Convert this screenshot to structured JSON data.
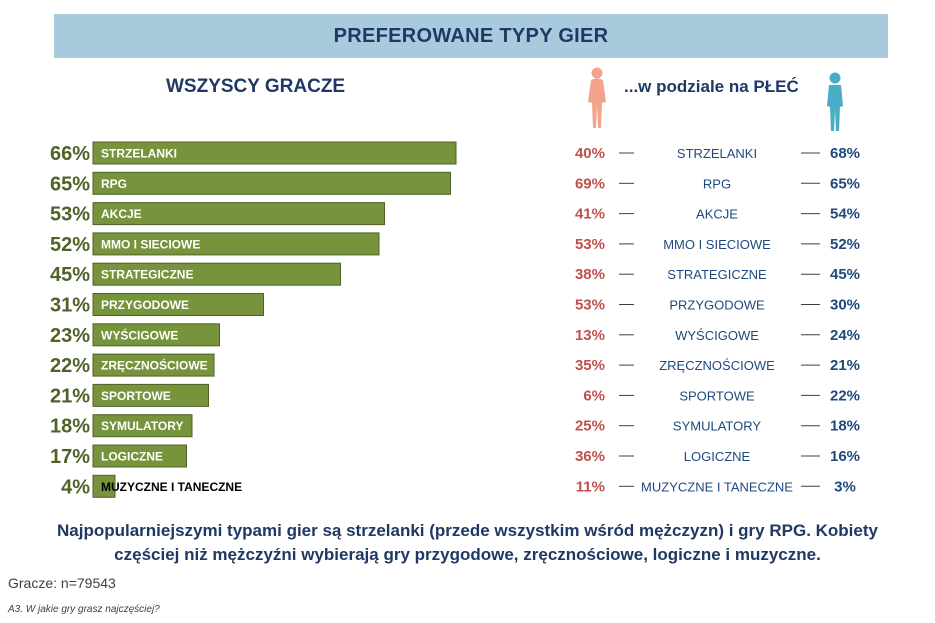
{
  "title": "PREFEROWANE TYPY GIER",
  "left_subtitle": "WSZYSCY GRACZE",
  "right_subtitle": "...w podziale na PŁEĆ",
  "chart_data": [
    {
      "type": "bar",
      "orientation": "horizontal",
      "title": "WSZYSCY GRACZE",
      "categories": [
        "STRZELANKI",
        "RPG",
        "AKCJE",
        "MMO I SIECIOWE",
        "STRATEGICZNE",
        "PRZYGODOWE",
        "WYŚCIGOWE",
        "ZRĘCZNOŚCIOWE",
        "SPORTOWE",
        "SYMULATORY",
        "LOGICZNE",
        "MUZYCZNE I TANECZNE"
      ],
      "values": [
        66,
        65,
        53,
        52,
        45,
        31,
        23,
        22,
        21,
        18,
        17,
        4
      ],
      "labels": [
        "66%",
        "65%",
        "53%",
        "52%",
        "45%",
        "31%",
        "23%",
        "22%",
        "21%",
        "18%",
        "17%",
        "4%"
      ],
      "xlim": [
        0,
        100
      ],
      "bar_color": "#77933c",
      "label_color": "#4f6228"
    },
    {
      "type": "table",
      "title": "...w podziale na PŁEĆ",
      "categories": [
        "STRZELANKI",
        "RPG",
        "AKCJE",
        "MMO I SIECIOWE",
        "STRATEGICZNE",
        "PRZYGODOWE",
        "WYŚCIGOWE",
        "ZRĘCZNOŚCIOWE",
        "SPORTOWE",
        "SYMULATORY",
        "LOGICZNE",
        "MUZYCZNE I TANECZNE"
      ],
      "series": [
        {
          "values": [
            40,
            69,
            41,
            53,
            38,
            53,
            13,
            35,
            6,
            25,
            36,
            11
          ],
          "labels": [
            "40%",
            "69%",
            "41%",
            "53%",
            "38%",
            "53%",
            "13%",
            "35%",
            "6%",
            "25%",
            "36%",
            "11%"
          ],
          "color": "#c0504d"
        },
        {
          "values": [
            68,
            65,
            54,
            52,
            45,
            30,
            24,
            21,
            22,
            18,
            16,
            3
          ],
          "labels": [
            "68%",
            "65%",
            "54%",
            "52%",
            "45%",
            "30%",
            "24%",
            "21%",
            "22%",
            "18%",
            "16%",
            "3%"
          ],
          "color": "#1f497d"
        }
      ],
      "icons": [
        "female-silhouette-icon",
        "male-silhouette-icon"
      ],
      "icon_colors": [
        "#f2a58c",
        "#4bacc6"
      ]
    }
  ],
  "footer": {
    "line1": "Najpopularniejszymi typami gier są strzelanki (przede wszystkim wśród mężczyzn) i gry RPG. Kobiety",
    "line2": "częściej niż mężczyźni wybierają gry przygodowe, zręcznościowe, logiczne i muzyczne."
  },
  "sample": "Gracze: n=79543",
  "question": "A3. W jakie gry grasz najczęściej?"
}
